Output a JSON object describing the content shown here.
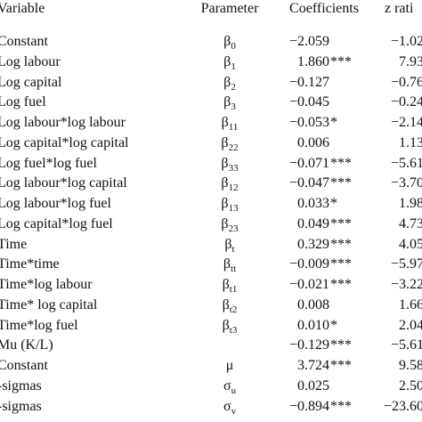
{
  "table": {
    "header": [
      "Variable",
      "Parameter",
      "Coefficients",
      "z rati"
    ],
    "rows": [
      [
        "Constant",
        {
          "symbol": "β",
          "sub": "0"
        },
        "−2.059",
        "",
        "−1.02"
      ],
      [
        "Log labour",
        {
          "symbol": "β",
          "sub": "1"
        },
        "1.860",
        "***",
        "7.93"
      ],
      [
        "Log capital",
        {
          "symbol": "β",
          "sub": "2"
        },
        "−0.127",
        "",
        "−0.76"
      ],
      [
        "Log fuel",
        {
          "symbol": "β",
          "sub": "3"
        },
        "−0.045",
        "",
        "−0.24"
      ],
      [
        "Log labour*log labour",
        {
          "symbol": "β",
          "sub": "11"
        },
        "−0.053",
        "*",
        "−2.14"
      ],
      [
        "Log capital*log capital",
        {
          "symbol": "β",
          "sub": "22"
        },
        "0.006",
        "",
        "1.13"
      ],
      [
        "Log fuel*log fuel",
        {
          "symbol": "β",
          "sub": "33"
        },
        "−0.071",
        "***",
        "−5.61"
      ],
      [
        "Log labour*log capital",
        {
          "symbol": "β",
          "sub": "12"
        },
        "−0.047",
        "***",
        "−3.70"
      ],
      [
        "Log labour*log fuel",
        {
          "symbol": "β",
          "sub": "13"
        },
        "0.033",
        "*",
        "1.98"
      ],
      [
        "Log capital*log fuel",
        {
          "symbol": "β",
          "sub": "23"
        },
        "0.049",
        "***",
        "4.73"
      ],
      [
        "Time",
        {
          "symbol": "β",
          "sub": "t"
        },
        "0.329",
        "***",
        "4.05"
      ],
      [
        "Time*time",
        {
          "symbol": "β",
          "sub": "tt"
        },
        "−0.009",
        "***",
        "−5.97"
      ],
      [
        "Time*log labour",
        {
          "symbol": "β",
          "sub": "t1"
        },
        "−0.021",
        "***",
        "−3.22"
      ],
      [
        "Time* log capital",
        {
          "symbol": "β",
          "sub": "t2"
        },
        "0.008",
        "",
        "1.66"
      ],
      [
        "Time*log fuel",
        {
          "symbol": "β",
          "sub": "t3"
        },
        "0.010",
        "*",
        "2.04"
      ],
      [
        "Mu (K/L)",
        {
          "symbol": "",
          "sub": ""
        },
        "−0.129",
        "***",
        "−5.61"
      ],
      [
        "Constant",
        {
          "symbol": "μ",
          "sub": ""
        },
        "3.724",
        "***",
        "9.58"
      ],
      [
        "-sigmas",
        {
          "symbol": "σ",
          "sub": "u"
        },
        "0.025",
        "",
        "2.50"
      ],
      [
        "-sigmas",
        {
          "symbol": "σ",
          "sub": "v"
        },
        "−0.894",
        "***",
        "−23.60"
      ]
    ]
  }
}
